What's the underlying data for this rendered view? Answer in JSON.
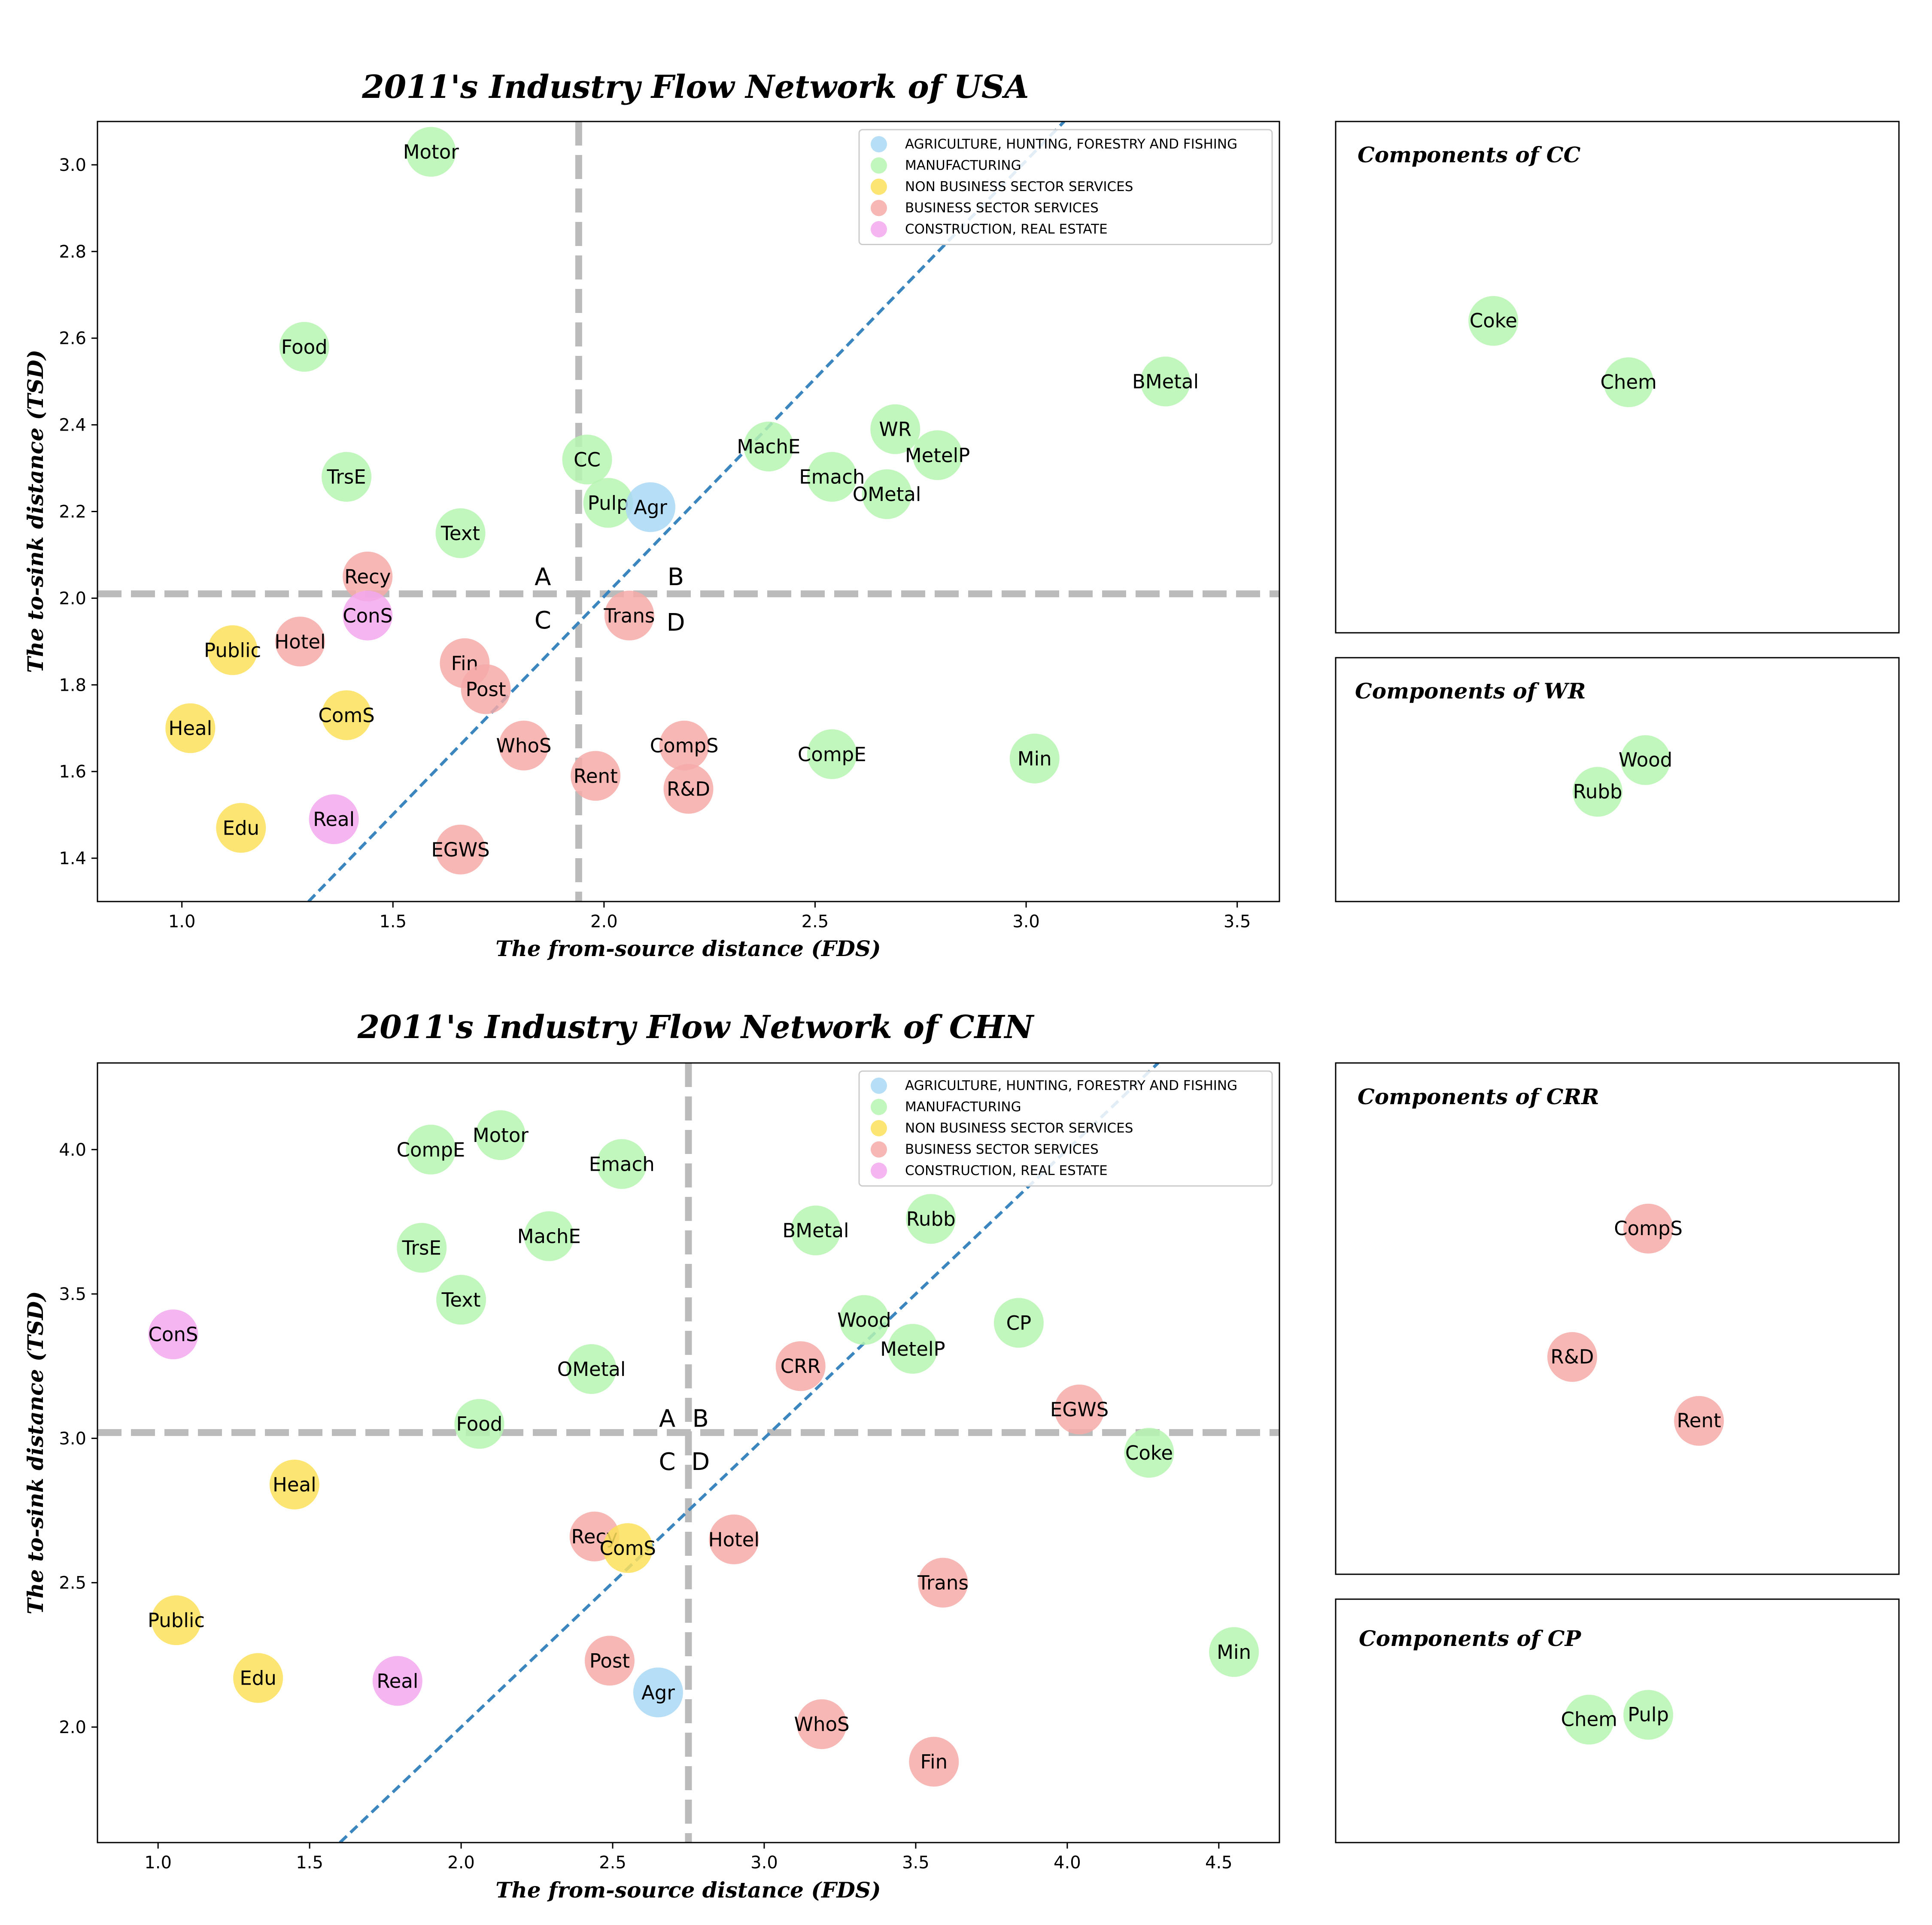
{
  "chart_data": [
    {
      "type": "scatter",
      "title": "2011's Industry Flow Network of USA",
      "xlabel": "The from-source distance (FDS)",
      "ylabel": "The to-sink distance (TSD)",
      "xlim": [
        0.8,
        3.6
      ],
      "ylim": [
        1.3,
        3.1
      ],
      "xticks": [
        1.0,
        1.5,
        2.0,
        2.5,
        3.0,
        3.5
      ],
      "yticks": [
        1.4,
        1.6,
        1.8,
        2.0,
        2.2,
        2.4,
        2.6,
        2.8,
        3.0
      ],
      "tick_decimals": 1,
      "grid": false,
      "legend_placement": "top-right",
      "vline_x": 1.94,
      "hline_y": 2.01,
      "diagonal": [
        [
          1.3,
          1.3
        ],
        [
          3.09,
          3.1
        ]
      ],
      "quadrant_labels": [
        {
          "text": "A",
          "x": 1.855,
          "y": 2.05
        },
        {
          "text": "B",
          "x": 2.17,
          "y": 2.05
        },
        {
          "text": "C",
          "x": 1.855,
          "y": 1.95
        },
        {
          "text": "D",
          "x": 2.17,
          "y": 1.945
        }
      ],
      "points": [
        {
          "label": "Motor",
          "x": 1.59,
          "y": 3.03,
          "category": "manufacturing"
        },
        {
          "label": "Food",
          "x": 1.29,
          "y": 2.58,
          "category": "manufacturing"
        },
        {
          "label": "TrsE",
          "x": 1.39,
          "y": 2.28,
          "category": "manufacturing"
        },
        {
          "label": "Text",
          "x": 1.66,
          "y": 2.15,
          "category": "manufacturing"
        },
        {
          "label": "CC",
          "x": 1.96,
          "y": 2.32,
          "category": "manufacturing"
        },
        {
          "label": "Pulp",
          "x": 2.01,
          "y": 2.22,
          "category": "manufacturing"
        },
        {
          "label": "Agr",
          "x": 2.11,
          "y": 2.21,
          "category": "agriculture"
        },
        {
          "label": "MachE",
          "x": 2.39,
          "y": 2.35,
          "category": "manufacturing"
        },
        {
          "label": "Emach",
          "x": 2.54,
          "y": 2.28,
          "category": "manufacturing"
        },
        {
          "label": "WR",
          "x": 2.69,
          "y": 2.39,
          "category": "manufacturing"
        },
        {
          "label": "MetelP",
          "x": 2.79,
          "y": 2.33,
          "category": "manufacturing"
        },
        {
          "label": "OMetal",
          "x": 2.67,
          "y": 2.24,
          "category": "manufacturing"
        },
        {
          "label": "BMetal",
          "x": 3.33,
          "y": 2.5,
          "category": "manufacturing"
        },
        {
          "label": "Recy",
          "x": 1.44,
          "y": 2.05,
          "category": "business"
        },
        {
          "label": "ConS",
          "x": 1.44,
          "y": 1.96,
          "category": "construction"
        },
        {
          "label": "Hotel",
          "x": 1.28,
          "y": 1.9,
          "category": "business"
        },
        {
          "label": "Public",
          "x": 1.12,
          "y": 1.88,
          "category": "nonbusiness"
        },
        {
          "label": "Trans",
          "x": 2.06,
          "y": 1.96,
          "category": "business"
        },
        {
          "label": "Fin",
          "x": 1.67,
          "y": 1.85,
          "category": "business"
        },
        {
          "label": "Post",
          "x": 1.72,
          "y": 1.79,
          "category": "business"
        },
        {
          "label": "Heal",
          "x": 1.02,
          "y": 1.7,
          "category": "nonbusiness"
        },
        {
          "label": "ComS",
          "x": 1.39,
          "y": 1.73,
          "category": "nonbusiness"
        },
        {
          "label": "WhoS",
          "x": 1.81,
          "y": 1.66,
          "category": "business"
        },
        {
          "label": "CompS",
          "x": 2.19,
          "y": 1.66,
          "category": "business"
        },
        {
          "label": "CompE",
          "x": 2.54,
          "y": 1.64,
          "category": "manufacturing"
        },
        {
          "label": "Min",
          "x": 3.02,
          "y": 1.63,
          "category": "manufacturing"
        },
        {
          "label": "Rent",
          "x": 1.98,
          "y": 1.59,
          "category": "business"
        },
        {
          "label": "R&D",
          "x": 2.2,
          "y": 1.56,
          "category": "business"
        },
        {
          "label": "Edu",
          "x": 1.14,
          "y": 1.47,
          "category": "nonbusiness"
        },
        {
          "label": "Real",
          "x": 1.36,
          "y": 1.49,
          "category": "construction"
        },
        {
          "label": "EGWS",
          "x": 1.66,
          "y": 1.42,
          "category": "business"
        }
      ]
    },
    {
      "type": "scatter",
      "title": "2011's Industry Flow Network of CHN",
      "xlabel": "The from-source distance (FDS)",
      "ylabel": "The to-sink distance (TSD)",
      "xlim": [
        0.8,
        4.7
      ],
      "ylim": [
        1.6,
        4.3
      ],
      "xticks": [
        1.0,
        1.5,
        2.0,
        2.5,
        3.0,
        3.5,
        4.0,
        4.5
      ],
      "yticks": [
        2.0,
        2.5,
        3.0,
        3.5,
        4.0
      ],
      "tick_decimals": 1,
      "grid": false,
      "legend_placement": "top-right",
      "vline_x": 2.75,
      "hline_y": 3.02,
      "diagonal": [
        [
          1.6,
          1.6
        ],
        [
          4.3,
          4.3
        ]
      ],
      "quadrant_labels": [
        {
          "text": "A",
          "x": 2.68,
          "y": 3.07
        },
        {
          "text": "B",
          "x": 2.79,
          "y": 3.07
        },
        {
          "text": "C",
          "x": 2.68,
          "y": 2.92
        },
        {
          "text": "D",
          "x": 2.79,
          "y": 2.92
        }
      ],
      "points": [
        {
          "label": "Motor",
          "x": 2.13,
          "y": 4.05,
          "category": "manufacturing"
        },
        {
          "label": "CompE",
          "x": 1.9,
          "y": 4.0,
          "category": "manufacturing"
        },
        {
          "label": "Emach",
          "x": 2.53,
          "y": 3.95,
          "category": "manufacturing"
        },
        {
          "label": "TrsE",
          "x": 1.87,
          "y": 3.66,
          "category": "manufacturing"
        },
        {
          "label": "MachE",
          "x": 2.29,
          "y": 3.7,
          "category": "manufacturing"
        },
        {
          "label": "BMetal",
          "x": 3.17,
          "y": 3.72,
          "category": "manufacturing"
        },
        {
          "label": "Rubb",
          "x": 3.55,
          "y": 3.76,
          "category": "manufacturing"
        },
        {
          "label": "Text",
          "x": 2.0,
          "y": 3.48,
          "category": "manufacturing"
        },
        {
          "label": "ConS",
          "x": 1.05,
          "y": 3.36,
          "category": "construction"
        },
        {
          "label": "Wood",
          "x": 3.33,
          "y": 3.41,
          "category": "manufacturing"
        },
        {
          "label": "CP",
          "x": 3.84,
          "y": 3.4,
          "category": "manufacturing"
        },
        {
          "label": "MetelP",
          "x": 3.49,
          "y": 3.31,
          "category": "manufacturing"
        },
        {
          "label": "OMetal",
          "x": 2.43,
          "y": 3.24,
          "category": "manufacturing"
        },
        {
          "label": "CRR",
          "x": 3.12,
          "y": 3.25,
          "category": "business"
        },
        {
          "label": "EGWS",
          "x": 4.04,
          "y": 3.1,
          "category": "business"
        },
        {
          "label": "Food",
          "x": 2.06,
          "y": 3.05,
          "category": "manufacturing"
        },
        {
          "label": "Coke",
          "x": 4.27,
          "y": 2.95,
          "category": "manufacturing"
        },
        {
          "label": "Heal",
          "x": 1.45,
          "y": 2.84,
          "category": "nonbusiness"
        },
        {
          "label": "Recy",
          "x": 2.44,
          "y": 2.66,
          "category": "business"
        },
        {
          "label": "ComS",
          "x": 2.55,
          "y": 2.62,
          "category": "nonbusiness"
        },
        {
          "label": "Hotel",
          "x": 2.9,
          "y": 2.65,
          "category": "business"
        },
        {
          "label": "Trans",
          "x": 3.59,
          "y": 2.5,
          "category": "business"
        },
        {
          "label": "Public",
          "x": 1.06,
          "y": 2.37,
          "category": "nonbusiness"
        },
        {
          "label": "Min",
          "x": 4.55,
          "y": 2.26,
          "category": "manufacturing"
        },
        {
          "label": "Post",
          "x": 2.49,
          "y": 2.23,
          "category": "business"
        },
        {
          "label": "Edu",
          "x": 1.33,
          "y": 2.17,
          "category": "nonbusiness"
        },
        {
          "label": "Real",
          "x": 1.79,
          "y": 2.16,
          "category": "construction"
        },
        {
          "label": "Agr",
          "x": 2.65,
          "y": 2.12,
          "category": "agriculture"
        },
        {
          "label": "WhoS",
          "x": 3.19,
          "y": 2.01,
          "category": "business"
        },
        {
          "label": "Fin",
          "x": 3.56,
          "y": 1.88,
          "category": "business"
        }
      ]
    }
  ],
  "legend": [
    {
      "key": "agriculture",
      "label": "AGRICULTURE, HUNTING, FORESTRY AND FISHING",
      "color": "#a9d8f5"
    },
    {
      "key": "manufacturing",
      "label": "MANUFACTURING",
      "color": "#b6f5b0"
    },
    {
      "key": "nonbusiness",
      "label": "NON BUSINESS SECTOR SERVICES",
      "color": "#fbe05a"
    },
    {
      "key": "business",
      "label": "BUSINESS SECTOR SERVICES",
      "color": "#f4aaa8"
    },
    {
      "key": "construction",
      "label": "CONSTRUCTION, REAL ESTATE",
      "color": "#f2a8ef"
    }
  ],
  "colors": {
    "diagonal": "#3c86bf",
    "quadrant_lines": "#bbbbbb"
  },
  "insets": [
    {
      "title": "Components of CC",
      "points": [
        {
          "label": "Coke",
          "x": 0.28,
          "y": 0.61,
          "category": "manufacturing"
        },
        {
          "label": "Chem",
          "x": 0.52,
          "y": 0.49,
          "category": "manufacturing"
        }
      ]
    },
    {
      "title": "Components of WR",
      "points": [
        {
          "label": "Wood",
          "x": 0.55,
          "y": 0.58,
          "category": "manufacturing"
        },
        {
          "label": "Rubb",
          "x": 0.465,
          "y": 0.45,
          "category": "manufacturing"
        }
      ]
    },
    {
      "title": "Components of CRR",
      "points": [
        {
          "label": "CompS",
          "x": 0.555,
          "y": 0.676,
          "category": "business"
        },
        {
          "label": "R&D",
          "x": 0.42,
          "y": 0.425,
          "category": "business"
        },
        {
          "label": "Rent",
          "x": 0.645,
          "y": 0.3,
          "category": "business"
        }
      ]
    },
    {
      "title": "Components of CP",
      "points": [
        {
          "label": "Chem",
          "x": 0.45,
          "y": 0.505,
          "category": "manufacturing"
        },
        {
          "label": "Pulp",
          "x": 0.555,
          "y": 0.525,
          "category": "manufacturing"
        }
      ]
    }
  ]
}
